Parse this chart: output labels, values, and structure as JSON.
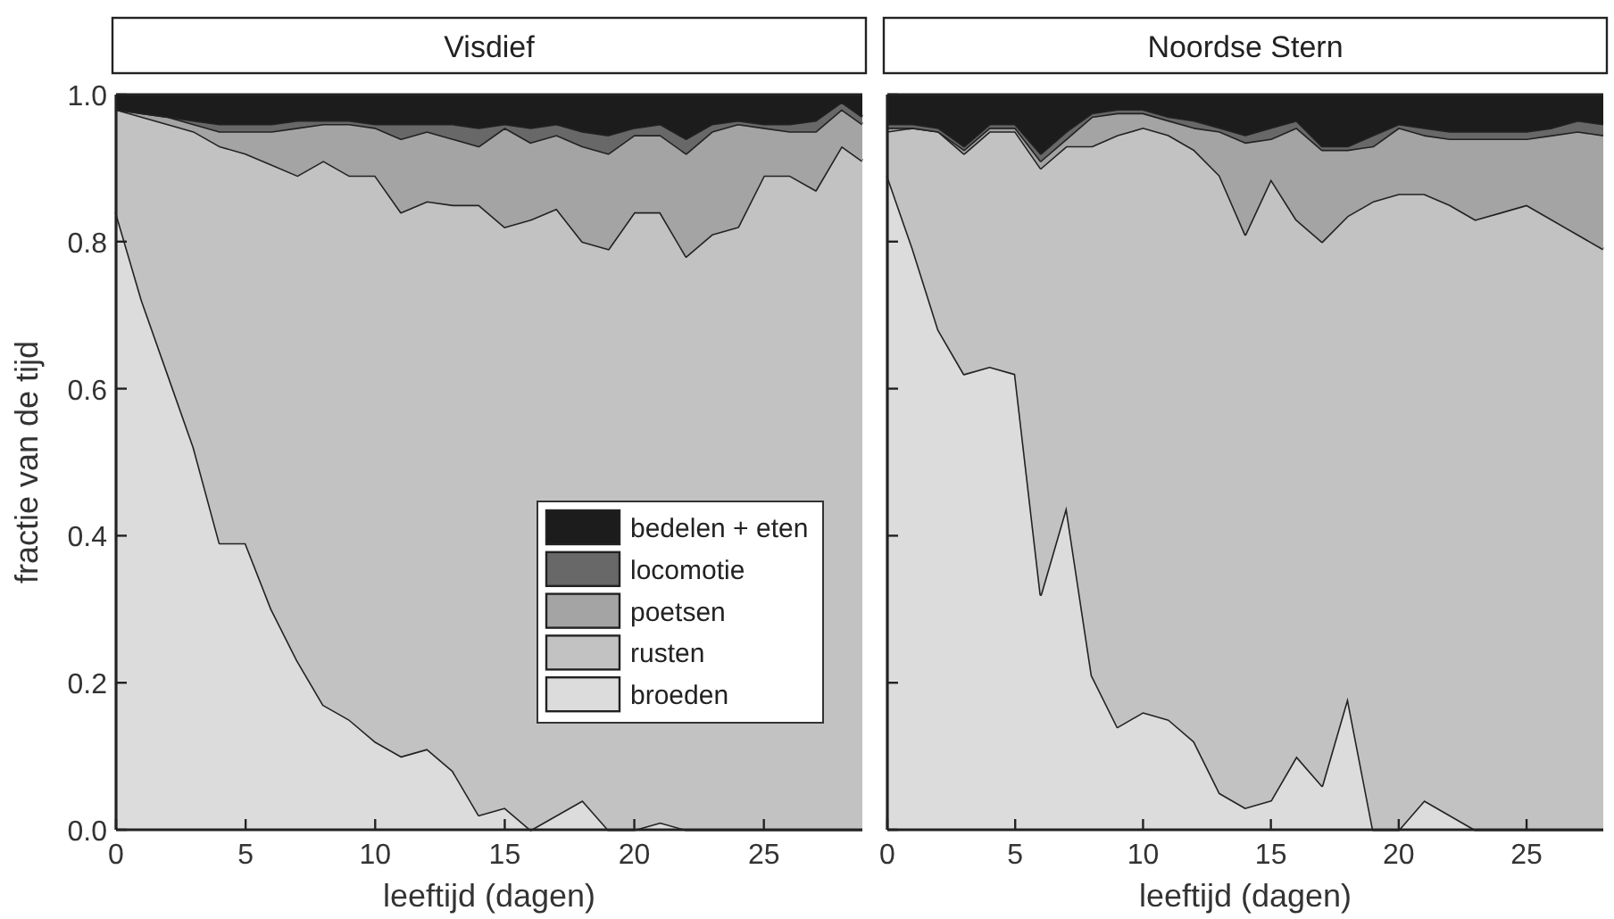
{
  "chart_data": [
    {
      "type": "area",
      "stacked": true,
      "title": "Visdief",
      "xlabel": "leeftijd (dagen)",
      "ylabel": "fractie van de tijd",
      "x": [
        0,
        1,
        2,
        3,
        4,
        5,
        6,
        7,
        8,
        9,
        10,
        11,
        12,
        13,
        14,
        15,
        16,
        17,
        18,
        19,
        20,
        21,
        22,
        23,
        24,
        25,
        26,
        27,
        28,
        28.8
      ],
      "xlim": [
        0,
        28.8
      ],
      "xticks": [
        0,
        5,
        10,
        15,
        20,
        25
      ],
      "ylim": [
        0,
        1
      ],
      "yticks": [
        {
          "value": 0,
          "label": "0.0"
        },
        0.2,
        0.4,
        0.6,
        0.8,
        {
          "value": 1,
          "label": "1.0"
        }
      ],
      "legend": "bottom right",
      "grid": false,
      "series": [
        {
          "name": "broeden",
          "color": "#dcdcdc",
          "values": [
            0.84,
            0.72,
            0.62,
            0.52,
            0.39,
            0.39,
            0.3,
            0.23,
            0.17,
            0.15,
            0.12,
            0.1,
            0.11,
            0.08,
            0.02,
            0.03,
            0,
            0.02,
            0.04,
            0,
            0,
            0.01,
            0,
            0,
            0,
            0,
            0,
            0,
            0,
            0
          ]
        },
        {
          "name": "rusten",
          "color": "#c2c2c2",
          "values": [
            0.14,
            0.25,
            0.34,
            0.43,
            0.54,
            0.53,
            0.605,
            0.66,
            0.74,
            0.74,
            0.77,
            0.74,
            0.745,
            0.77,
            0.83,
            0.79,
            0.83,
            0.825,
            0.76,
            0.79,
            0.84,
            0.83,
            0.78,
            0.81,
            0.82,
            0.89,
            0.89,
            0.87,
            0.93,
            0.91
          ]
        },
        {
          "name": "poetsen",
          "color": "#a4a4a4",
          "values": [
            0,
            0.005,
            0.01,
            0.01,
            0.02,
            0.03,
            0.045,
            0.065,
            0.05,
            0.07,
            0.065,
            0.1,
            0.095,
            0.09,
            0.08,
            0.135,
            0.105,
            0.1,
            0.13,
            0.13,
            0.105,
            0.105,
            0.14,
            0.14,
            0.14,
            0.065,
            0.06,
            0.08,
            0.05,
            0.05
          ]
        },
        {
          "name": "locomotie",
          "color": "#686868",
          "values": [
            0,
            0,
            0,
            0.005,
            0.01,
            0.01,
            0.01,
            0.01,
            0.005,
            0.005,
            0.005,
            0.02,
            0.01,
            0.02,
            0.025,
            0.005,
            0.02,
            0.015,
            0.02,
            0.025,
            0.01,
            0.015,
            0.02,
            0.01,
            0.005,
            0.005,
            0.01,
            0.015,
            0.01,
            0.01
          ]
        },
        {
          "name": "bedelen + eten",
          "color": "#1c1c1c",
          "values": [
            0.02,
            0.025,
            0.03,
            0.035,
            0.04,
            0.04,
            0.04,
            0.035,
            0.035,
            0.035,
            0.04,
            0.04,
            0.04,
            0.04,
            0.045,
            0.04,
            0.045,
            0.04,
            0.05,
            0.055,
            0.045,
            0.04,
            0.06,
            0.04,
            0.035,
            0.04,
            0.04,
            0.035,
            0.01,
            0.03
          ]
        }
      ]
    },
    {
      "type": "area",
      "stacked": true,
      "title": "Noordse Stern",
      "xlabel": "leeftijd (dagen)",
      "x": [
        0,
        1,
        2,
        3,
        4,
        5,
        6,
        7,
        8,
        9,
        10,
        11,
        12,
        13,
        14,
        15,
        16,
        17,
        18,
        19,
        20,
        21,
        22,
        23,
        24,
        25,
        26,
        27,
        28
      ],
      "xlim": [
        0,
        28
      ],
      "xticks": [
        0,
        5,
        10,
        15,
        20,
        25
      ],
      "ylim": [
        0,
        1
      ],
      "yticks": [
        {
          "value": 0,
          "label": null
        },
        {
          "value": 0.2,
          "label": null
        },
        {
          "value": 0.4,
          "label": null
        },
        {
          "value": 0.6,
          "label": null
        },
        {
          "value": 0.8,
          "label": null
        },
        {
          "value": 1,
          "label": null
        }
      ],
      "tick_labels": "x",
      "legend": false,
      "grid": false,
      "series": [
        {
          "color": "#dcdcdc",
          "values": [
            0.89,
            0.79,
            0.68,
            0.62,
            0.63,
            0.62,
            0.32,
            0.44,
            0.21,
            0.14,
            0.16,
            0.15,
            0.12,
            0.05,
            0.03,
            0.04,
            0.1,
            0.06,
            0.18,
            0,
            0,
            0.04,
            0.02,
            0,
            0,
            0,
            0,
            0,
            0
          ]
        },
        {
          "color": "#c2c2c2",
          "values": [
            0.06,
            0.165,
            0.27,
            0.3,
            0.32,
            0.33,
            0.58,
            0.49,
            0.72,
            0.805,
            0.795,
            0.795,
            0.805,
            0.84,
            0.78,
            0.845,
            0.73,
            0.74,
            0.655,
            0.855,
            0.865,
            0.825,
            0.83,
            0.83,
            0.84,
            0.85,
            0.83,
            0.81,
            0.79
          ]
        },
        {
          "color": "#a4a4a4",
          "values": [
            0.005,
            0,
            0,
            0.005,
            0.005,
            0.005,
            0.01,
            0.01,
            0.04,
            0.03,
            0.02,
            0.02,
            0.03,
            0.06,
            0.125,
            0.055,
            0.125,
            0.125,
            0.09,
            0.075,
            0.09,
            0.08,
            0.09,
            0.11,
            0.1,
            0.09,
            0.115,
            0.14,
            0.155
          ]
        },
        {
          "color": "#686868",
          "values": [
            0.005,
            0.005,
            0.005,
            0.005,
            0.005,
            0.005,
            0.01,
            0.01,
            0.005,
            0.005,
            0.005,
            0.005,
            0.01,
            0.005,
            0.01,
            0.015,
            0.01,
            0.005,
            0.005,
            0.015,
            0.005,
            0.01,
            0.01,
            0.01,
            0.01,
            0.01,
            0.01,
            0.015,
            0.015
          ]
        },
        {
          "color": "#1c1c1c",
          "values": [
            0.04,
            0.04,
            0.045,
            0.07,
            0.04,
            0.04,
            0.08,
            0.05,
            0.025,
            0.02,
            0.02,
            0.03,
            0.035,
            0.045,
            0.055,
            0.045,
            0.035,
            0.07,
            0.07,
            0.055,
            0.04,
            0.045,
            0.05,
            0.05,
            0.05,
            0.05,
            0.045,
            0.035,
            0.04
          ]
        }
      ]
    }
  ]
}
